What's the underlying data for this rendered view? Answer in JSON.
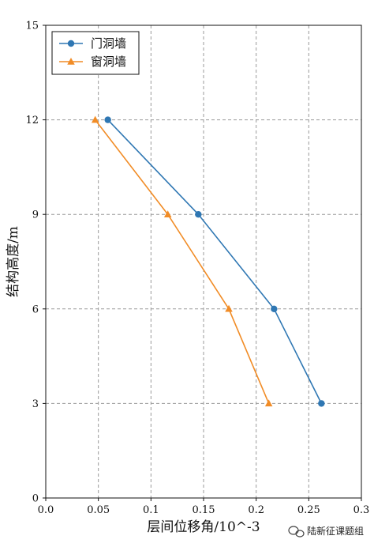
{
  "chart_data": {
    "type": "line",
    "xlabel": "层间位移角/10^-3",
    "ylabel": "结构高度/m",
    "xlim": [
      0.0,
      0.3
    ],
    "ylim": [
      0,
      15
    ],
    "xticks": [
      "0.0",
      "0.05",
      "0.1",
      "0.15",
      "0.2",
      "0.25",
      "0.3"
    ],
    "yticks": [
      "0",
      "3",
      "6",
      "9",
      "12",
      "15"
    ],
    "grid": true,
    "legend_position": "top-left",
    "series": [
      {
        "name": "门洞墙",
        "color": "#2f77b3",
        "marker": "circle",
        "points": [
          {
            "x": 0.059,
            "y": 12
          },
          {
            "x": 0.145,
            "y": 9
          },
          {
            "x": 0.217,
            "y": 6
          },
          {
            "x": 0.262,
            "y": 3
          }
        ]
      },
      {
        "name": "窗洞墙",
        "color": "#f18c26",
        "marker": "triangle",
        "points": [
          {
            "x": 0.047,
            "y": 12
          },
          {
            "x": 0.116,
            "y": 9
          },
          {
            "x": 0.174,
            "y": 6
          },
          {
            "x": 0.212,
            "y": 3
          }
        ]
      }
    ]
  },
  "watermark": {
    "text": "陆新征课题组"
  }
}
